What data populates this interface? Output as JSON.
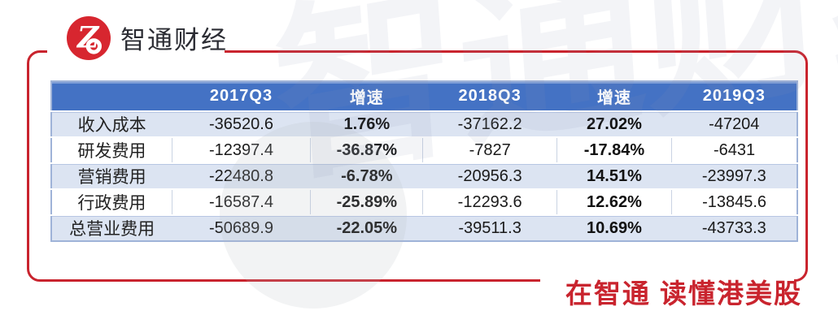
{
  "brand": {
    "title": "智通财经",
    "logo_glyph": "Z"
  },
  "slogan": "在智通  读懂港美股",
  "watermark": "智通财经",
  "colors": {
    "brand_red": "#C9242E",
    "logo_red": "#D7262F",
    "header_blue": "#4472C4",
    "band_blue": "#DCE4F2",
    "border_blue": "#9FB3D8",
    "text_dark": "#1A1A1A"
  },
  "chart_data": {
    "type": "table",
    "title": "",
    "columns": [
      "",
      "2017Q3",
      "增速",
      "2018Q3",
      "增速",
      "2019Q3"
    ],
    "rows": [
      {
        "label": "收入成本",
        "values": [
          "-36520.6",
          "1.76%",
          "-37162.2",
          "27.02%",
          "-47204"
        ]
      },
      {
        "label": "研发费用",
        "values": [
          "-12397.4",
          "-36.87%",
          "-7827",
          "-17.84%",
          "-6431"
        ]
      },
      {
        "label": "营销费用",
        "values": [
          "-22480.8",
          "-6.78%",
          "-20956.3",
          "14.51%",
          "-23997.3"
        ]
      },
      {
        "label": "行政费用",
        "values": [
          "-16587.4",
          "-25.89%",
          "-12293.6",
          "12.62%",
          "-13845.6"
        ]
      },
      {
        "label": "总营业费用",
        "values": [
          "-50689.9",
          "-22.05%",
          "-39511.3",
          "10.69%",
          "-43733.3"
        ]
      }
    ]
  }
}
